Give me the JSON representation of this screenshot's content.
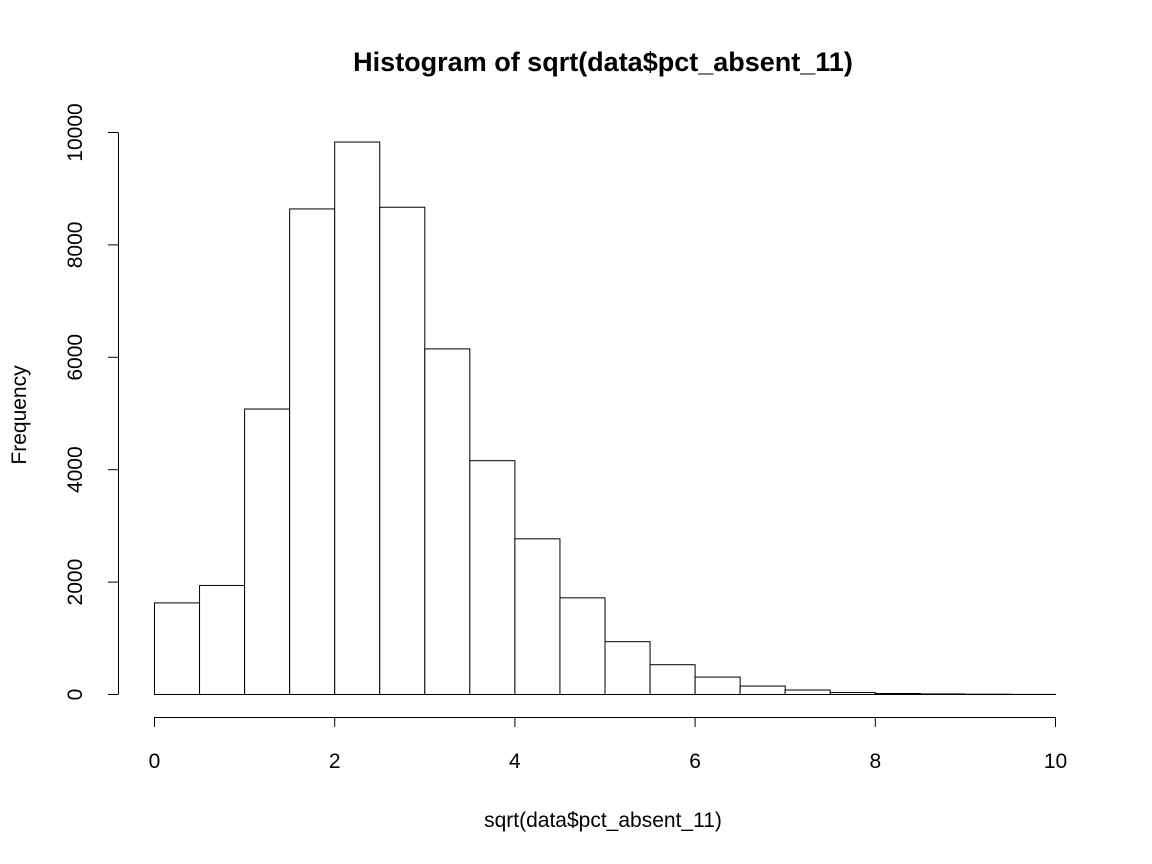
{
  "chart_data": {
    "type": "bar",
    "title": "Histogram of sqrt(data$pct_absent_11)",
    "xlabel": "sqrt(data$pct_absent_11)",
    "ylabel": "Frequency",
    "xlim": [
      0,
      10
    ],
    "ylim": [
      0,
      10000
    ],
    "x_ticks": [
      "0",
      "2",
      "4",
      "6",
      "8",
      "10"
    ],
    "y_ticks": [
      "0",
      "2000",
      "4000",
      "6000",
      "8000",
      "10000"
    ],
    "bin_width": 0.5,
    "bin_starts": [
      0,
      0.5,
      1,
      1.5,
      2,
      2.5,
      3,
      3.5,
      4,
      4.5,
      5,
      5.5,
      6,
      6.5,
      7,
      7.5,
      8,
      8.5,
      9,
      9.5
    ],
    "values": [
      1630,
      1940,
      5080,
      8640,
      9830,
      8670,
      6150,
      4160,
      2770,
      1720,
      940,
      530,
      310,
      150,
      80,
      35,
      18,
      10,
      5,
      2
    ],
    "grid": false,
    "colors": {
      "bar_fill": "#ffffff",
      "bar_stroke": "#000000"
    }
  }
}
